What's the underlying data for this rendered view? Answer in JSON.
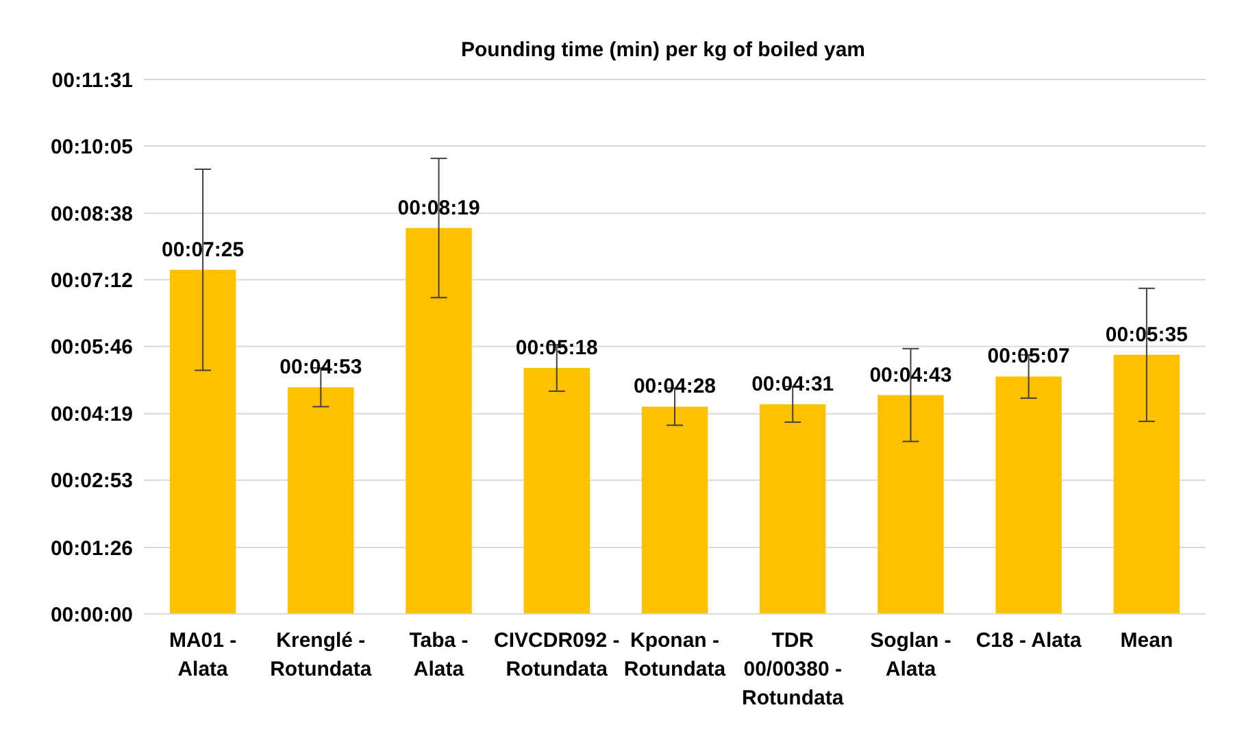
{
  "chart_data": {
    "type": "bar",
    "title": "Pounding time (min) per kg of boiled yam",
    "categories": [
      "MA01 - Alata",
      "Krenglé - Rotundata",
      "Taba - Alata",
      "CIVCDR092 - Rotundata",
      "Kponan - Rotundata",
      "TDR 00/00380 - Rotundata",
      "Soglan - Alata",
      "C18 - Alata",
      "Mean"
    ],
    "values": [
      445,
      293,
      499,
      318,
      268,
      271,
      283,
      307,
      335
    ],
    "errors": [
      130,
      25,
      90,
      30,
      24,
      23,
      60,
      28,
      86
    ],
    "value_labels": [
      "00:07:25",
      "00:04:53",
      "00:08:19",
      "00:05:18",
      "00:04:28",
      "00:04:31",
      "00:04:43",
      "00:05:07",
      "00:05:35"
    ],
    "color": "#ffc000",
    "ylim": [
      0,
      691
    ],
    "yticks": [
      {
        "value": 0,
        "label": "00:00:00"
      },
      {
        "value": 86,
        "label": "00:01:26"
      },
      {
        "value": 173,
        "label": "00:02:53"
      },
      {
        "value": 259,
        "label": "00:04:19"
      },
      {
        "value": 346,
        "label": "00:05:46"
      },
      {
        "value": 432,
        "label": "00:07:12"
      },
      {
        "value": 518,
        "label": "00:08:38"
      },
      {
        "value": 605,
        "label": "00:10:05"
      },
      {
        "value": 691,
        "label": "00:11:31"
      }
    ],
    "grid": "y"
  }
}
